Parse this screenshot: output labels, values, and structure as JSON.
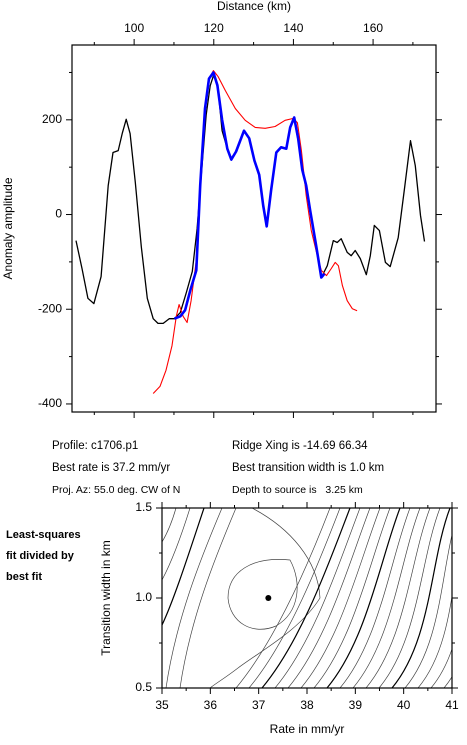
{
  "chart_data": [
    {
      "type": "line",
      "x_label": "Distance (km)",
      "y_label": "Anomaly amplitude",
      "xlim": [
        84.4,
        175.8
      ],
      "ylim": [
        -417,
        358
      ],
      "xticks": [
        100,
        120,
        140,
        160
      ],
      "yticks": [
        -400,
        -200,
        0,
        200
      ],
      "series": [
        {
          "color": "#000000",
          "x": [
            85.4,
            86.9,
            88.4,
            89.9,
            91.7,
            93.5,
            94.7,
            96.0,
            97.0,
            98.0,
            99.0,
            100.3,
            101.8,
            103.3,
            104.8,
            106.0,
            107.3,
            108.8,
            110.1,
            111.6,
            113.1,
            114.6,
            115.8,
            116.8,
            118.1,
            119.1,
            120.1,
            121.1,
            122.1,
            123.4,
            124.4,
            125.6,
            127.6,
            128.9,
            130.2,
            131.4,
            132.4,
            133.3,
            134.4,
            135.7,
            136.9,
            138.2,
            139.2,
            140.2,
            141.2,
            142.2,
            143.2,
            144.2,
            145.7,
            147.0,
            148.5,
            150.0,
            151.0,
            152.0,
            153.5,
            154.5,
            155.5,
            156.8,
            158.3,
            159.3,
            160.3,
            161.6,
            163.1,
            164.3,
            166.3,
            167.9,
            169.4,
            170.6,
            171.9,
            172.9
          ],
          "values": [
            -55,
            -114,
            -177,
            -188,
            -131,
            61,
            131,
            135,
            171,
            201,
            171,
            68,
            -68,
            -177,
            -220,
            -230,
            -230,
            -220,
            -220,
            -207,
            -165,
            -120,
            -30,
            76,
            211,
            272,
            298,
            262,
            177,
            139,
            116,
            133,
            177,
            161,
            114,
            84,
            19,
            -25,
            51,
            131,
            142,
            139,
            184,
            201,
            156,
            93,
            61,
            8,
            -65,
            -133,
            -108,
            -55,
            -59,
            -51,
            -80,
            -87,
            -76,
            -93,
            -127,
            -87,
            -23,
            -34,
            -101,
            -110,
            -49,
            55,
            156,
            103,
            -2,
            -57
          ]
        },
        {
          "color": "#ff0000",
          "x": [
            104.8,
            106.5,
            108.0,
            109.5,
            110.6,
            111.3,
            112.3,
            113.3,
            114.3,
            115.6,
            116.6,
            117.6,
            118.6,
            119.9,
            121.1,
            122.9,
            125.4,
            127.9,
            130.4,
            132.9,
            135.4,
            137.9,
            140.0,
            141.0,
            142.0,
            143.2,
            144.5,
            146.0,
            147.0,
            148.3,
            149.5,
            150.5,
            151.3,
            152.3,
            153.5,
            154.8,
            156.0
          ],
          "values": [
            -378,
            -363,
            -329,
            -277,
            -215,
            -190,
            -215,
            -228,
            -182,
            -97,
            51,
            199,
            283,
            304,
            291,
            262,
            224,
            199,
            184,
            182,
            186,
            199,
            203,
            194,
            135,
            40,
            -34,
            -87,
            -118,
            -129,
            -114,
            -101,
            -108,
            -150,
            -182,
            -199,
            -203
          ]
        },
        {
          "color": "#0000ff",
          "x": [
            110.1,
            111.6,
            112.8,
            114.1,
            115.6,
            116.6,
            117.8,
            118.8,
            119.9,
            120.9,
            122.1,
            123.4,
            124.4,
            125.6,
            127.6,
            128.9,
            130.2,
            131.4,
            132.4,
            133.3,
            134.4,
            135.7,
            136.9,
            138.2,
            139.2,
            140.2,
            141.2,
            142.2,
            143.2,
            144.2,
            145.7,
            147.0,
            147.8
          ],
          "values": [
            -220,
            -215,
            -202,
            -160,
            -118,
            61,
            224,
            287,
            300,
            273,
            200,
            139,
            116,
            133,
            177,
            161,
            114,
            84,
            19,
            -25,
            51,
            131,
            142,
            139,
            184,
            205,
            160,
            95,
            61,
            8,
            -65,
            -133,
            -125
          ]
        }
      ]
    },
    {
      "type": "contour",
      "x_label": "Rate in mm/yr",
      "y_label": "Transition width in km",
      "xlim": [
        35,
        41
      ],
      "ylim": [
        0.5,
        1.5
      ],
      "xticks": [
        35,
        36,
        37,
        38,
        39,
        40,
        41
      ],
      "yticks": [
        0.5,
        {
          "value": 1,
          "label": "1.0"
        },
        1.5
      ],
      "points": {
        "x": [
          37.2
        ],
        "y": [
          1.0
        ]
      }
    }
  ],
  "info": {
    "profile": "Profile: c1706.p1",
    "best_rate": "Best rate is 37.2 mm/yr",
    "projection": "Proj. Az: 55.0 deg. CW of N",
    "ridge": "Ridge Xing is -14.69 66.34",
    "best_width": "Best transition width is 1.0 km",
    "depth": "Depth to source is   3.25 km",
    "side_note": [
      "Least-squares",
      "fit divided by",
      "best fit"
    ]
  }
}
